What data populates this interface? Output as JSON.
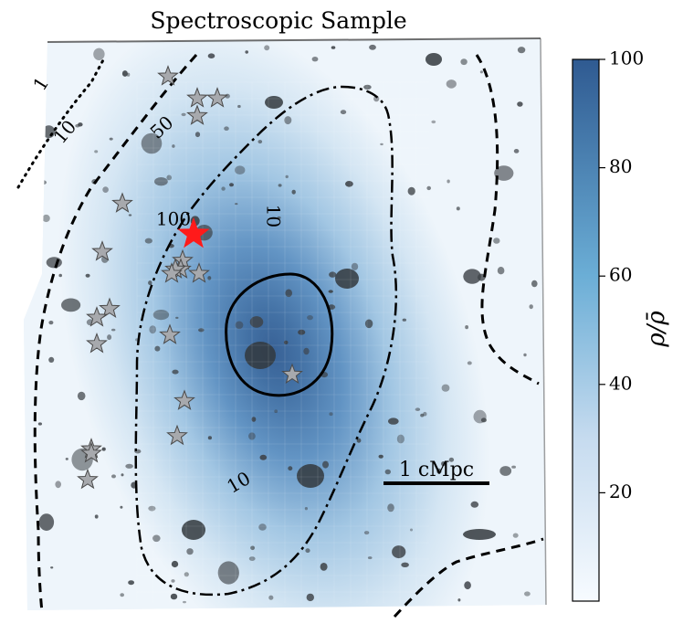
{
  "chart_data": {
    "type": "heatmap",
    "title": "Spectroscopic Sample",
    "colorbar": {
      "label": "ρ/ρ̄",
      "range": [
        0,
        100
      ],
      "ticks": [
        20,
        40,
        60,
        80,
        100
      ],
      "tick_labels": [
        "20",
        "40",
        "60",
        "80",
        "100"
      ],
      "color_low": "#f7fbff",
      "color_high": "#2f5a91"
    },
    "density_peak": {
      "x": 0.68,
      "y": 0.46,
      "value": 100
    },
    "contours": [
      {
        "level": 1,
        "label": "1",
        "style": "dotted"
      },
      {
        "level": 10,
        "label": "10",
        "style": "dashed"
      },
      {
        "level": 50,
        "label": "50",
        "style": "dashdot"
      },
      {
        "level": 100,
        "label": "100",
        "style": "solid"
      }
    ],
    "contour_labels": [
      {
        "text": "1",
        "x": 0.08,
        "y": 0.13
      },
      {
        "text": "10",
        "x": 0.21,
        "y": 0.24
      },
      {
        "text": "50",
        "x": 0.74,
        "y": 0.23
      },
      {
        "text": "100",
        "x": 0.8,
        "y": 0.44
      },
      {
        "text": "10",
        "x": 1.34,
        "y": 0.43
      },
      {
        "text": "10",
        "x": 1.16,
        "y": 1.04
      }
    ],
    "scale_bar": {
      "label": "1 cMpc",
      "length_cmpc": 1
    },
    "target": {
      "name": "primary galaxy",
      "x": 0.91,
      "y": 0.43,
      "color": "#ff1a1a"
    },
    "members": [
      {
        "x": 0.77,
        "y": 0.07
      },
      {
        "x": 0.93,
        "y": 0.12
      },
      {
        "x": 1.04,
        "y": 0.12
      },
      {
        "x": 0.93,
        "y": 0.16
      },
      {
        "x": 0.52,
        "y": 0.36
      },
      {
        "x": 0.41,
        "y": 0.47
      },
      {
        "x": 0.85,
        "y": 0.49
      },
      {
        "x": 0.84,
        "y": 0.51
      },
      {
        "x": 0.81,
        "y": 0.51
      },
      {
        "x": 0.79,
        "y": 0.52
      },
      {
        "x": 0.94,
        "y": 0.52
      },
      {
        "x": 0.45,
        "y": 0.6
      },
      {
        "x": 0.38,
        "y": 0.62
      },
      {
        "x": 0.78,
        "y": 0.66
      },
      {
        "x": 0.38,
        "y": 0.68
      },
      {
        "x": 0.86,
        "y": 0.81
      },
      {
        "x": 1.45,
        "y": 0.75
      },
      {
        "x": 0.82,
        "y": 0.89
      },
      {
        "x": 0.35,
        "y": 0.92
      },
      {
        "x": 0.35,
        "y": 0.93
      },
      {
        "x": 0.33,
        "y": 0.99
      }
    ]
  }
}
